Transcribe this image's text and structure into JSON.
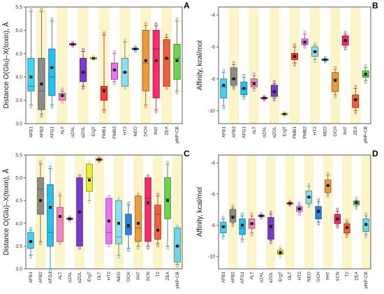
{
  "style": {
    "band_color": "#fbf5c9",
    "palette": [
      "#3fd3f3",
      "#8c8c8c",
      "#24c0f0",
      "#f484c4",
      "#c046a0",
      "#7a3ad0",
      "#f0ee2a",
      "#ff3a3a",
      "#f070f0",
      "#8ae0f0",
      "#2a84e0",
      "#f09a40",
      "#f82a6a",
      "#f06040",
      "#68d84a",
      "#6ad8e8"
    ]
  },
  "panels": [
    {
      "letter": "A",
      "ylabel": "Distance O(Glu)–X(toxin), Å",
      "ylim": [
        3.0,
        5.5
      ],
      "yticks": [
        "3.0",
        "3.5",
        "4.0",
        "4.5",
        "5.0",
        "5.5"
      ]
    },
    {
      "letter": "B",
      "ylabel": "Affinity, kcal/mol",
      "ylim": [
        -10.8,
        -3.5
      ],
      "yticks": [
        "-10",
        "-8",
        "-6",
        "-4"
      ]
    },
    {
      "letter": "C",
      "ylabel": "Distance O(Glu)–X(toxin), Å",
      "ylim": [
        3.0,
        5.5
      ],
      "yticks": [
        "3.0",
        "3.5",
        "4.0",
        "4.5",
        "5.0",
        "5.5"
      ]
    },
    {
      "letter": "D",
      "ylabel": "Affinity, kcal/mol",
      "ylim": [
        -10.8,
        -3.5
      ],
      "yticks": [
        "-10",
        "-8",
        "-6",
        "-4"
      ]
    }
  ],
  "chart_data": [
    {
      "panel": "A",
      "type": "box",
      "ylabel": "Distance O(Glu)–X(toxin), Å",
      "ylim": [
        3.0,
        5.5
      ],
      "categories": [
        "AFB1",
        "AFB2",
        "AFG1",
        "ALT",
        "αZAL",
        "αZOL",
        "ErgT",
        "FMB1",
        "FMB2",
        "HT2",
        "NEO",
        "OCH",
        "PAT",
        "ZEA",
        "pNP-CB"
      ],
      "boxes": [
        [
          3.4,
          3.7,
          3.8,
          4.4,
          5.4,
          4.0
        ],
        [
          3.2,
          3.3,
          3.7,
          4.4,
          5.4,
          3.85
        ],
        [
          3.4,
          3.6,
          4.0,
          4.6,
          5.2,
          4.2
        ],
        [
          3.5,
          3.5,
          3.6,
          3.65,
          3.7,
          3.6
        ],
        [
          4.7,
          4.7,
          4.7,
          4.7,
          4.7,
          4.7
        ],
        [
          3.8,
          3.9,
          4.1,
          4.4,
          4.55,
          4.1
        ],
        [
          4.4,
          4.4,
          4.4,
          4.4,
          4.4,
          4.4
        ],
        [
          3.3,
          3.5,
          3.75,
          3.8,
          4.9,
          3.7
        ],
        [
          3.9,
          3.95,
          4.15,
          4.3,
          4.5,
          4.15
        ],
        [
          3.8,
          3.8,
          4.1,
          4.4,
          4.75,
          4.1
        ],
        [
          4.6,
          4.6,
          4.6,
          4.6,
          4.6,
          4.6
        ],
        [
          3.4,
          3.7,
          4.3,
          5.0,
          5.1,
          4.35
        ],
        [
          3.3,
          3.55,
          4.6,
          5.0,
          5.1,
          4.35
        ],
        [
          3.8,
          3.8,
          4.4,
          4.8,
          4.85,
          4.4
        ],
        [
          3.7,
          3.95,
          4.4,
          4.7,
          5.2,
          4.35
        ]
      ]
    },
    {
      "panel": "B",
      "type": "box",
      "ylabel": "Affinity, kcal/mol",
      "ylim": [
        -10.8,
        -3.5
      ],
      "categories": [
        "AFB1",
        "AFB2",
        "AFG1",
        "ALT",
        "αZAL",
        "αZOL",
        "ErgT",
        "FMB1",
        "FMB2",
        "HT2",
        "NEO",
        "OCH",
        "PAT",
        "ZEA",
        "pNP-CB"
      ],
      "boxes": [
        [
          -9.7,
          -9.2,
          -8.5,
          -8.0,
          -7.6,
          -8.4
        ],
        [
          -8.5,
          -8.4,
          -8.0,
          -7.3,
          -7.1,
          -8.0
        ],
        [
          -9.1,
          -9.0,
          -8.6,
          -8.2,
          -7.9,
          -8.6
        ],
        [
          -8.6,
          -8.5,
          -8.2,
          -8.0,
          -7.8,
          -8.3
        ],
        [
          -9.2,
          -9.2,
          -9.2,
          -9.2,
          -9.2,
          -9.2
        ],
        [
          -9.2,
          -9.1,
          -8.8,
          -8.4,
          -8.3,
          -8.8
        ],
        [
          -10.2,
          -10.2,
          -10.2,
          -10.2,
          -10.2,
          -10.2
        ],
        [
          -7.0,
          -6.8,
          -6.6,
          -6.4,
          -6.0,
          -6.6
        ],
        [
          -5.9,
          -5.85,
          -5.7,
          -5.5,
          -5.2,
          -5.7
        ],
        [
          -6.8,
          -6.6,
          -6.3,
          -6.0,
          -5.9,
          -6.3
        ],
        [
          -6.8,
          -6.8,
          -6.8,
          -6.8,
          -6.8,
          -6.8
        ],
        [
          -9.0,
          -8.8,
          -8.0,
          -7.6,
          -7.4,
          -8.1
        ],
        [
          -6.0,
          -5.9,
          -5.6,
          -5.3,
          -5.2,
          -5.6
        ],
        [
          -10.0,
          -9.8,
          -9.3,
          -9.0,
          -8.6,
          -9.3
        ],
        [
          -8.1,
          -7.9,
          -7.8,
          -7.5,
          -7.3,
          -7.7
        ]
      ]
    },
    {
      "panel": "C",
      "type": "box",
      "ylabel": "Distance O(Glu)–X(toxin), Å",
      "ylim": [
        3.0,
        5.5
      ],
      "categories": [
        "AFB1",
        "AFB2",
        "AFG1",
        "ALT",
        "αZAL",
        "αZOL",
        "ErgT",
        "GLT",
        "HT2",
        "NEO",
        "OCH",
        "PAT",
        "SCN",
        "T2",
        "ZEA",
        "pNP-CB"
      ],
      "boxes": [
        [
          3.3,
          3.45,
          3.6,
          3.8,
          3.85,
          3.6
        ],
        [
          3.6,
          4.2,
          4.75,
          5.0,
          5.3,
          4.5
        ],
        [
          3.0,
          3.5,
          3.8,
          4.85,
          5.2,
          4.35
        ],
        [
          3.6,
          3.6,
          4.15,
          4.35,
          4.6,
          4.15
        ],
        [
          4.1,
          4.1,
          4.1,
          4.1,
          4.1,
          4.1
        ],
        [
          3.5,
          3.5,
          4.25,
          5.0,
          5.0,
          4.25
        ],
        [
          4.5,
          4.7,
          5.0,
          5.3,
          5.3,
          4.95
        ],
        [
          5.4,
          5.4,
          5.4,
          5.4,
          5.4,
          5.4
        ],
        [
          3.55,
          3.55,
          3.8,
          4.55,
          4.55,
          4.05
        ],
        [
          3.3,
          3.55,
          3.7,
          4.5,
          4.5,
          4.0
        ],
        [
          3.45,
          3.75,
          3.9,
          4.2,
          4.4,
          3.95
        ],
        [
          3.5,
          3.6,
          3.9,
          4.6,
          4.6,
          4.0
        ],
        [
          3.5,
          3.6,
          4.55,
          5.0,
          5.0,
          4.45
        ],
        [
          3.55,
          3.65,
          4.2,
          4.4,
          4.6,
          3.85
        ],
        [
          3.5,
          4.1,
          4.55,
          5.0,
          5.3,
          4.5
        ],
        [
          3.1,
          3.15,
          3.5,
          3.9,
          3.9,
          3.5
        ]
      ]
    },
    {
      "panel": "D",
      "type": "box",
      "ylabel": "Affinity, kcal/mol",
      "ylim": [
        -10.8,
        -3.5
      ],
      "categories": [
        "AFB1",
        "AFB2",
        "AFG1",
        "ALT",
        "αZAL",
        "αZOL",
        "ErgT",
        "GLT",
        "HT2",
        "NEO",
        "OCH",
        "PAT",
        "SCN",
        "T2",
        "ZEA",
        "pNP-CB"
      ],
      "boxes": [
        [
          -8.7,
          -8.5,
          -8.1,
          -7.8,
          -7.6,
          -8.1
        ],
        [
          -7.9,
          -7.8,
          -7.4,
          -7.0,
          -6.9,
          -7.5
        ],
        [
          -8.9,
          -8.6,
          -8.2,
          -7.6,
          -7.4,
          -8.0
        ],
        [
          -8.5,
          -8.2,
          -7.9,
          -7.6,
          -7.4,
          -7.9
        ],
        [
          -7.4,
          -7.4,
          -7.4,
          -7.4,
          -7.4,
          -7.4
        ],
        [
          -9.0,
          -8.9,
          -8.0,
          -7.5,
          -7.3,
          -8.1
        ],
        [
          -9.9,
          -9.85,
          -9.8,
          -9.6,
          -9.5,
          -9.75
        ],
        [
          -6.6,
          -6.6,
          -6.6,
          -6.6,
          -6.6,
          -6.6
        ],
        [
          -7.2,
          -7.1,
          -6.95,
          -6.8,
          -6.7,
          -6.95
        ],
        [
          -6.7,
          -6.6,
          -6.2,
          -5.8,
          -5.5,
          -6.2
        ],
        [
          -7.8,
          -7.6,
          -7.2,
          -6.8,
          -6.5,
          -7.1
        ],
        [
          -6.0,
          -5.9,
          -5.5,
          -5.1,
          -4.8,
          -5.45
        ],
        [
          -8.0,
          -7.9,
          -7.6,
          -7.3,
          -7.1,
          -7.6
        ],
        [
          -8.6,
          -8.5,
          -8.2,
          -7.9,
          -7.8,
          -8.15
        ],
        [
          -6.8,
          -6.7,
          -6.6,
          -6.45,
          -6.4,
          -6.55
        ],
        [
          -8.6,
          -8.4,
          -8.0,
          -7.6,
          -7.4,
          -7.95
        ]
      ]
    }
  ]
}
